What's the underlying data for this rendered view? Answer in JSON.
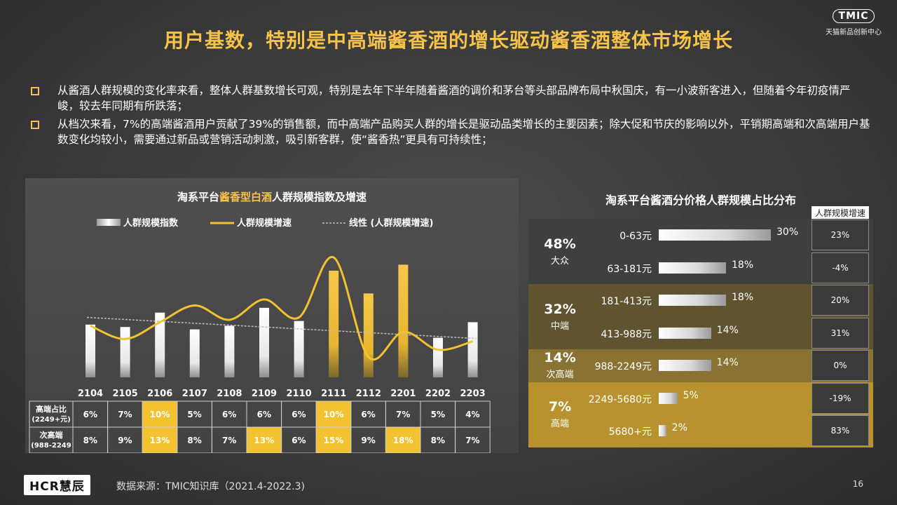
{
  "title": "用户基数，特别是中高端酱香酒的增长驱动酱香酒整体市场增长",
  "brand": {
    "logo": "TMIC",
    "subtitle": "天猫新品创新中心"
  },
  "bullets": [
    "从酱酒人群规模的变化率来看，整体人群基数增长可观，特别是去年下半年随着酱酒的调价和茅台等头部品牌布局中秋国庆，有一小波新客进入，但随着今年初疫情严峻，较去年同期有所跌落；",
    "从档次来看，7%的高端酱酒用户贡献了39%的销售额，而中高端产品购买人群的增长是驱动品类增长的主要因素；除大促和节庆的影响以外，平销期高端和次高端用户基数变化均较小，需要通过新品或营销活动刺激，吸引新客群，使“酱香热”更具有可持续性；"
  ],
  "chart_data": [
    {
      "type": "bar",
      "title_parts": [
        "淘系平台",
        "酱香型白酒",
        "人群规模指数及增速"
      ],
      "legend": [
        "人群规模指数",
        "人群规模增速",
        "线性 (人群规模增速)"
      ],
      "categories": [
        "2104",
        "2105",
        "2106",
        "2107",
        "2108",
        "2109",
        "2110",
        "2111",
        "2112",
        "2201",
        "2202",
        "2203"
      ],
      "series": [
        {
          "name": "人群规模指数",
          "values": [
            44,
            42,
            54,
            40,
            43,
            58,
            47,
            89,
            70,
            94,
            33,
            46
          ],
          "highlight": [
            false,
            false,
            false,
            false,
            false,
            false,
            false,
            true,
            true,
            true,
            false,
            false
          ]
        },
        {
          "name": "人群规模增速",
          "values": [
            43,
            32,
            46,
            60,
            48,
            65,
            50,
            100,
            17,
            38,
            23,
            30
          ]
        },
        {
          "name": "线性 (人群规模增速)",
          "values": [
            50,
            48.4,
            46.8,
            45.2,
            43.6,
            42,
            40.4,
            38.8,
            37.2,
            35.6,
            34,
            32.4
          ]
        }
      ],
      "ylim": [
        0,
        110
      ],
      "table": {
        "rows": [
          {
            "label": "高端占比\n(2249+元)",
            "values": [
              "6%",
              "7%",
              "10%",
              "5%",
              "6%",
              "6%",
              "6%",
              "10%",
              "6%",
              "7%",
              "5%",
              "4%"
            ],
            "highlight": [
              false,
              false,
              true,
              false,
              false,
              false,
              false,
              true,
              false,
              false,
              false,
              false
            ]
          },
          {
            "label": "次高端\n(988-2249",
            "values": [
              "8%",
              "9%",
              "13%",
              "8%",
              "7%",
              "13%",
              "6%",
              "15%",
              "9%",
              "18%",
              "8%",
              "7%"
            ],
            "highlight": [
              false,
              false,
              true,
              false,
              false,
              true,
              false,
              true,
              false,
              true,
              false,
              false
            ]
          }
        ]
      }
    },
    {
      "type": "bar",
      "orientation": "horizontal",
      "title": "淘系平台酱酒分价格人群规模占比分布",
      "growth_header": "人群规模增速",
      "segments": [
        {
          "pct": "48%",
          "name": "大众",
          "color": "#3f3f3f",
          "ranges": [
            {
              "label": "0-63元",
              "value": 30,
              "value_label": "30%",
              "growth": "23%"
            },
            {
              "label": "63-181元",
              "value": 18,
              "value_label": "18%",
              "growth": "-4%"
            }
          ]
        },
        {
          "pct": "32%",
          "name": "中端",
          "color": "#5f5330",
          "ranges": [
            {
              "label": "181-413元",
              "value": 18,
              "value_label": "18%",
              "growth": "20%"
            },
            {
              "label": "413-988元",
              "value": 14,
              "value_label": "14%",
              "growth": "31%"
            }
          ]
        },
        {
          "pct": "14%",
          "name": "次高端",
          "color": "#8a7232",
          "ranges": [
            {
              "label": "988-2249元",
              "value": 14,
              "value_label": "14%",
              "growth": "0%"
            }
          ]
        },
        {
          "pct": "7%",
          "name": "高端",
          "color": "#b8922e",
          "ranges": [
            {
              "label": "2249-5680元",
              "value": 5,
              "value_label": "5%",
              "growth": "-19%"
            },
            {
              "label": "5680+元",
              "value": 2,
              "value_label": "2%",
              "growth": "83%"
            }
          ]
        }
      ]
    }
  ],
  "footer": {
    "logo": "HCR慧辰",
    "source": "数据来源：TMIC知识库（2021.4-2022.3)",
    "page": "16"
  }
}
